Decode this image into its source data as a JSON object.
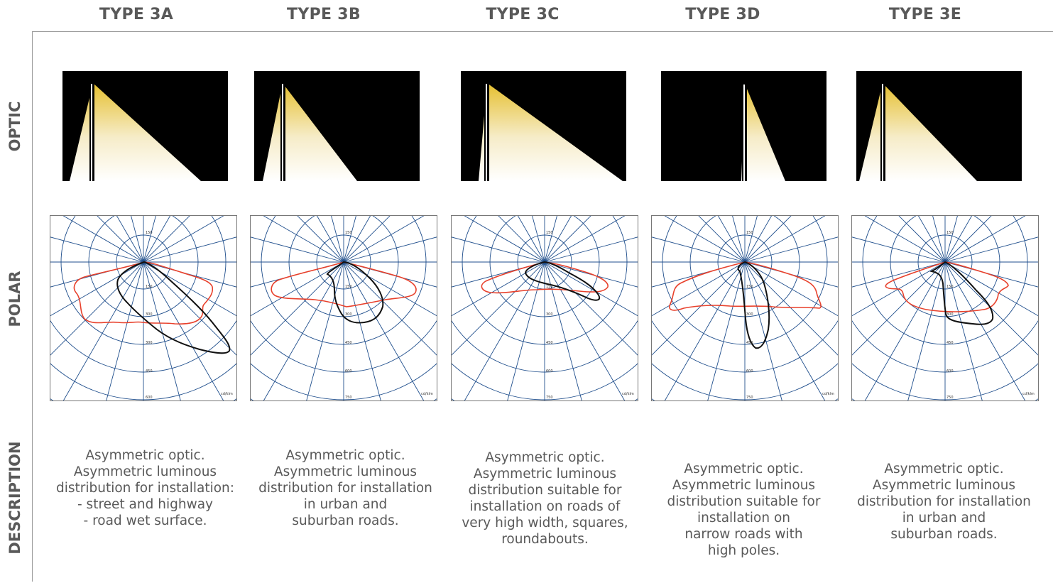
{
  "row_labels": {
    "optic": "OPTIC",
    "polar": "POLAR",
    "description": "DESCRIPTION"
  },
  "polar_unit": "cd/klm",
  "types": [
    {
      "title": "TYPE 3A",
      "polar_ticks": [
        "150",
        "150",
        "300",
        "300",
        "450",
        "600"
      ],
      "description": [
        "Asymmetric optic.",
        "Asymmetric luminous",
        "distribution for installation:",
        "- street and highway",
        "- road wet surface."
      ]
    },
    {
      "title": "TYPE 3B",
      "polar_ticks": [
        "150",
        "150",
        "300",
        "450",
        "600",
        "750"
      ],
      "description": [
        "Asymmetric optic.",
        "Asymmetric luminous",
        "distribution for installation",
        "in urban and",
        "suburban roads."
      ]
    },
    {
      "title": "TYPE 3C",
      "polar_ticks": [
        "150",
        "150",
        "300",
        "450",
        "600",
        "750"
      ],
      "description": [
        "Asymmetric optic.",
        "Asymmetric luminous",
        "distribution suitable for",
        "installation on roads of",
        "very high width, squares,",
        "roundabouts."
      ]
    },
    {
      "title": "TYPE 3D",
      "polar_ticks": [
        "150",
        "150",
        "300",
        "450",
        "600",
        "750"
      ],
      "description": [
        "Asymmetric optic.",
        "Asymmetric luminous",
        "distribution suitable for",
        "installation on",
        "narrow roads with",
        "high poles."
      ]
    },
    {
      "title": "TYPE 3E",
      "polar_ticks": [
        "150",
        "150",
        "300",
        "450",
        "600",
        "750"
      ],
      "description": [
        "Asymmetric optic.",
        "Asymmetric luminous",
        "distribution for installation",
        "in urban and",
        "suburban roads."
      ]
    }
  ],
  "colors": {
    "grid": "#1f4e8c",
    "curve_c0": "#e8412c",
    "curve_c90": "#111111",
    "light": "#e9c53a",
    "text": "#595959"
  }
}
